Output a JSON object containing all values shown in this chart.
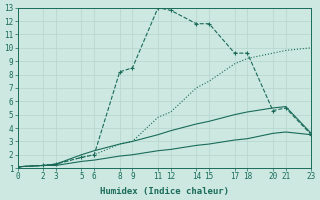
{
  "xlabel": "Humidex (Indice chaleur)",
  "bg_color": "#cce8e0",
  "grid_color": "#b8d8d0",
  "line_color": "#1a6b5a",
  "xlim": [
    0,
    23
  ],
  "ylim": [
    1,
    13
  ],
  "xticks": [
    0,
    2,
    3,
    5,
    6,
    8,
    9,
    11,
    12,
    14,
    15,
    17,
    18,
    20,
    21,
    23
  ],
  "yticks": [
    1,
    2,
    3,
    4,
    5,
    6,
    7,
    8,
    9,
    10,
    11,
    12,
    13
  ],
  "lines": [
    {
      "x": [
        0,
        2,
        3,
        5,
        6,
        8,
        9,
        11,
        12,
        14,
        15,
        17,
        18,
        20,
        21,
        23
      ],
      "y": [
        1.1,
        1.2,
        1.3,
        1.8,
        2.0,
        2.8,
        3.0,
        4.8,
        5.2,
        7.0,
        7.5,
        8.8,
        9.2,
        9.6,
        9.8,
        10.0
      ],
      "marker": null,
      "linestyle": ":"
    },
    {
      "x": [
        0,
        2,
        3,
        5,
        6,
        8,
        9,
        11,
        12,
        14,
        15,
        17,
        18,
        20,
        21,
        23
      ],
      "y": [
        1.1,
        1.2,
        1.3,
        1.8,
        2.0,
        8.2,
        8.5,
        13.0,
        12.8,
        11.8,
        11.8,
        9.6,
        9.6,
        5.3,
        5.5,
        3.5
      ],
      "marker": "+",
      "linestyle": "--"
    },
    {
      "x": [
        0,
        2,
        3,
        5,
        6,
        8,
        9,
        11,
        12,
        14,
        15,
        17,
        18,
        20,
        21,
        23
      ],
      "y": [
        1.1,
        1.2,
        1.3,
        2.0,
        2.3,
        2.8,
        3.0,
        3.5,
        3.8,
        4.3,
        4.5,
        5.0,
        5.2,
        5.5,
        5.6,
        3.6
      ],
      "marker": null,
      "linestyle": "-"
    },
    {
      "x": [
        0,
        2,
        3,
        5,
        6,
        8,
        9,
        11,
        12,
        14,
        15,
        17,
        18,
        20,
        21,
        23
      ],
      "y": [
        1.1,
        1.2,
        1.2,
        1.5,
        1.6,
        1.9,
        2.0,
        2.3,
        2.4,
        2.7,
        2.8,
        3.1,
        3.2,
        3.6,
        3.7,
        3.5
      ],
      "marker": null,
      "linestyle": "-"
    }
  ]
}
